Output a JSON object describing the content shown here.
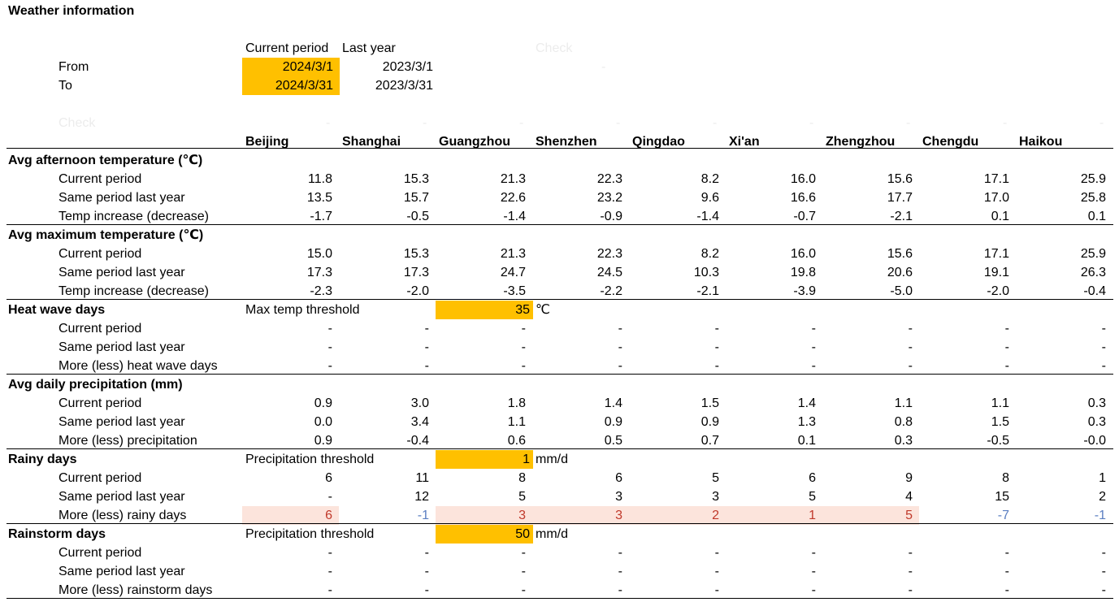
{
  "title": "Weather information",
  "period": {
    "col_current": "Current period",
    "col_last": "Last year",
    "check_label": "Check",
    "check_dash": "-",
    "from_label": "From",
    "to_label": "To",
    "from_current": "2024/3/1",
    "from_last": "2023/3/1",
    "to_current": "2024/3/31",
    "to_last": "2023/3/31"
  },
  "check_row_label": "Check",
  "cities": [
    "Beijing",
    "Shanghai",
    "Guangzhou",
    "Shenzhen",
    "Qingdao",
    "Xi'an",
    "Zhengzhou",
    "Chengdu",
    "Haikou"
  ],
  "sections": [
    {
      "title": "Avg afternoon temperature (℃)",
      "rows": [
        {
          "label": "Current period",
          "values": [
            "11.8",
            "15.3",
            "21.3",
            "22.3",
            "8.2",
            "16.0",
            "15.6",
            "17.1",
            "25.9"
          ]
        },
        {
          "label": "Same period last year",
          "values": [
            "13.5",
            "15.7",
            "22.6",
            "23.2",
            "9.6",
            "16.6",
            "17.7",
            "17.0",
            "25.8"
          ]
        },
        {
          "label": "Temp increase (decrease)",
          "values": [
            "-1.7",
            "-0.5",
            "-1.4",
            "-0.9",
            "-1.4",
            "-0.7",
            "-2.1",
            "0.1",
            "0.1"
          ]
        }
      ]
    },
    {
      "title": "Avg maximum temperature (℃)",
      "rows": [
        {
          "label": "Current period",
          "values": [
            "15.0",
            "15.3",
            "21.3",
            "22.3",
            "8.2",
            "16.0",
            "15.6",
            "17.1",
            "25.9"
          ]
        },
        {
          "label": "Same period last year",
          "values": [
            "17.3",
            "17.3",
            "24.7",
            "24.5",
            "10.3",
            "19.8",
            "20.6",
            "19.1",
            "26.3"
          ]
        },
        {
          "label": "Temp increase (decrease)",
          "values": [
            "-2.3",
            "-2.0",
            "-3.5",
            "-2.2",
            "-2.1",
            "-3.9",
            "-5.0",
            "-2.0",
            "-0.4"
          ]
        }
      ]
    },
    {
      "title": "Heat wave days",
      "threshold": {
        "label": "Max temp threshold",
        "value": "35",
        "unit": "℃"
      },
      "rows": [
        {
          "label": "Current period",
          "values": [
            "-",
            "-",
            "-",
            "-",
            "-",
            "-",
            "-",
            "-",
            "-"
          ]
        },
        {
          "label": "Same period last year",
          "values": [
            "-",
            "-",
            "-",
            "-",
            "-",
            "-",
            "-",
            "-",
            "-"
          ]
        },
        {
          "label": "More (less) heat wave days",
          "values": [
            "-",
            "-",
            "-",
            "-",
            "-",
            "-",
            "-",
            "-",
            "-"
          ]
        }
      ]
    },
    {
      "title": "Avg daily precipitation (mm)",
      "rows": [
        {
          "label": "Current period",
          "values": [
            "0.9",
            "3.0",
            "1.8",
            "1.4",
            "1.5",
            "1.4",
            "1.1",
            "1.1",
            "0.3"
          ]
        },
        {
          "label": "Same period last year",
          "values": [
            "0.0",
            "3.4",
            "1.1",
            "0.9",
            "0.9",
            "1.3",
            "0.8",
            "1.5",
            "0.3"
          ]
        },
        {
          "label": "More (less) precipitation",
          "values": [
            "0.9",
            "-0.4",
            "0.6",
            "0.5",
            "0.7",
            "0.1",
            "0.3",
            "-0.5",
            "-0.0"
          ]
        }
      ]
    },
    {
      "title": "Rainy days",
      "threshold": {
        "label": "Precipitation threshold",
        "value": "1",
        "unit": "mm/d"
      },
      "rows": [
        {
          "label": "Current period",
          "values": [
            "6",
            "11",
            "8",
            "6",
            "5",
            "6",
            "9",
            "8",
            "1"
          ]
        },
        {
          "label": "Same period last year",
          "values": [
            "-",
            "12",
            "5",
            "3",
            "3",
            "5",
            "4",
            "15",
            "2"
          ]
        },
        {
          "label": "More (less) rainy days",
          "values": [
            "6",
            "-1",
            "3",
            "3",
            "2",
            "1",
            "5",
            "-7",
            "-1"
          ],
          "highlight": true
        }
      ]
    },
    {
      "title": "Rainstorm days",
      "threshold": {
        "label": "Precipitation threshold",
        "value": "50",
        "unit": "mm/d"
      },
      "rows": [
        {
          "label": "Current period",
          "values": [
            "-",
            "-",
            "-",
            "-",
            "-",
            "-",
            "-",
            "-",
            "-"
          ]
        },
        {
          "label": "Same period last year",
          "values": [
            "-",
            "-",
            "-",
            "-",
            "-",
            "-",
            "-",
            "-",
            "-"
          ]
        },
        {
          "label": "More (less) rainstorm days",
          "values": [
            "-",
            "-",
            "-",
            "-",
            "-",
            "-",
            "-",
            "-",
            "-"
          ]
        }
      ]
    }
  ],
  "colors": {
    "input_cell": "#ffc000",
    "increase_fill": "#fce4dc",
    "increase_text": "#c0392b",
    "decrease_text": "#5b7fc2"
  }
}
